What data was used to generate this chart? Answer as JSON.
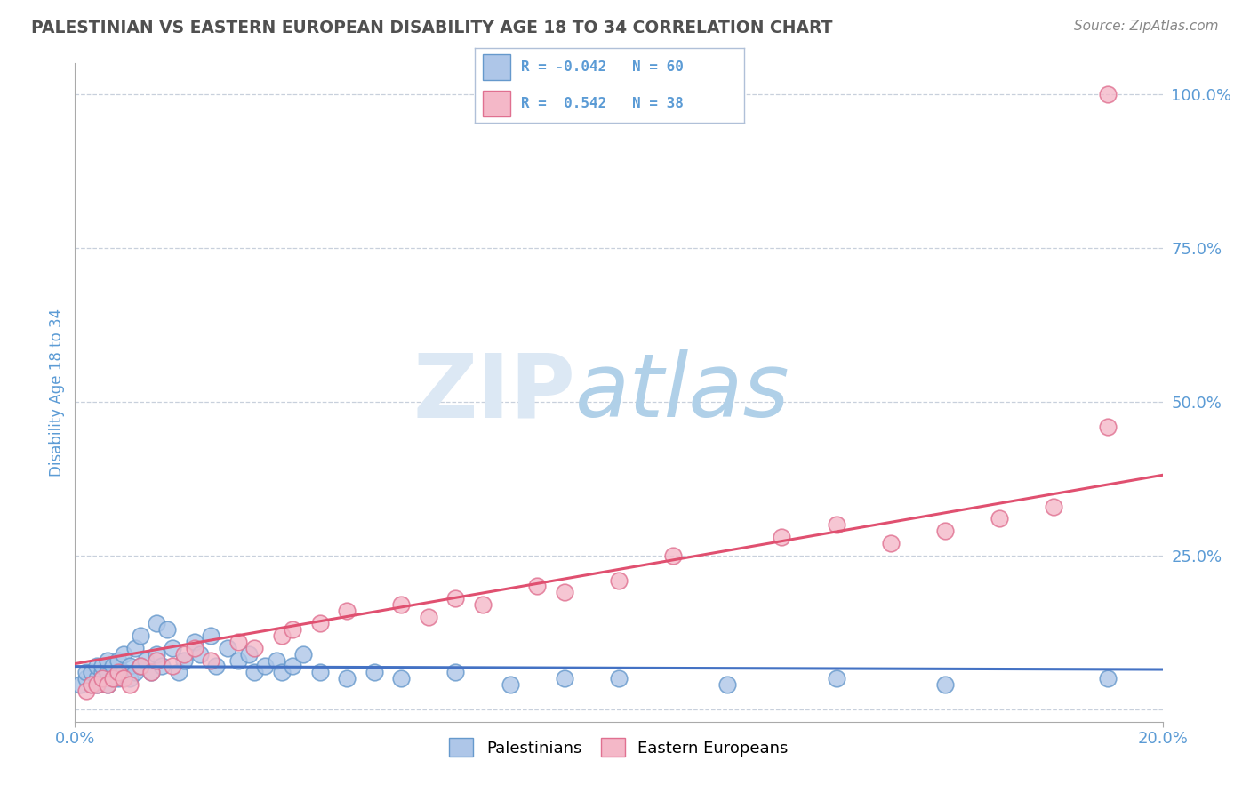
{
  "title": "PALESTINIAN VS EASTERN EUROPEAN DISABILITY AGE 18 TO 34 CORRELATION CHART",
  "source": "Source: ZipAtlas.com",
  "ylabel_label": "Disability Age 18 to 34",
  "xlim": [
    0.0,
    0.2
  ],
  "ylim": [
    -0.02,
    1.05
  ],
  "blue_color": "#aec6e8",
  "pink_color": "#f4b8c8",
  "blue_edge_color": "#6699cc",
  "pink_edge_color": "#e07090",
  "blue_line_color": "#4472c4",
  "pink_line_color": "#e05070",
  "background_color": "#ffffff",
  "grid_color": "#c8d0dc",
  "title_color": "#505050",
  "axis_tick_color": "#5b9bd5",
  "watermark_color": "#dce8f4",
  "legend_border_color": "#b0c0d8",
  "legend_r1": "R = -0.042",
  "legend_n1": "N = 60",
  "legend_r2": "R =  0.542",
  "legend_n2": "N = 38",
  "ytick_vals": [
    0.0,
    0.25,
    0.5,
    0.75,
    1.0
  ],
  "ytick_labels": [
    "",
    "25.0%",
    "50.0%",
    "75.0%",
    "100.0%"
  ],
  "xtick_vals": [
    0.0,
    0.2
  ],
  "xtick_labels": [
    "0.0%",
    "20.0%"
  ],
  "pal_x": [
    0.001,
    0.002,
    0.002,
    0.003,
    0.003,
    0.004,
    0.004,
    0.004,
    0.005,
    0.005,
    0.005,
    0.006,
    0.006,
    0.006,
    0.007,
    0.007,
    0.008,
    0.008,
    0.009,
    0.009,
    0.01,
    0.01,
    0.011,
    0.011,
    0.012,
    0.012,
    0.013,
    0.014,
    0.015,
    0.015,
    0.016,
    0.017,
    0.018,
    0.019,
    0.02,
    0.022,
    0.023,
    0.025,
    0.026,
    0.028,
    0.03,
    0.032,
    0.033,
    0.035,
    0.037,
    0.038,
    0.04,
    0.042,
    0.045,
    0.05,
    0.055,
    0.06,
    0.07,
    0.08,
    0.09,
    0.1,
    0.12,
    0.14,
    0.16,
    0.19
  ],
  "pal_y": [
    0.04,
    0.05,
    0.06,
    0.04,
    0.06,
    0.05,
    0.07,
    0.04,
    0.05,
    0.06,
    0.07,
    0.04,
    0.06,
    0.08,
    0.05,
    0.07,
    0.05,
    0.08,
    0.06,
    0.09,
    0.05,
    0.07,
    0.06,
    0.1,
    0.07,
    0.12,
    0.08,
    0.06,
    0.09,
    0.14,
    0.07,
    0.13,
    0.1,
    0.06,
    0.08,
    0.11,
    0.09,
    0.12,
    0.07,
    0.1,
    0.08,
    0.09,
    0.06,
    0.07,
    0.08,
    0.06,
    0.07,
    0.09,
    0.06,
    0.05,
    0.06,
    0.05,
    0.06,
    0.04,
    0.05,
    0.05,
    0.04,
    0.05,
    0.04,
    0.05
  ],
  "ee_x": [
    0.002,
    0.003,
    0.004,
    0.005,
    0.006,
    0.007,
    0.008,
    0.009,
    0.01,
    0.012,
    0.014,
    0.015,
    0.018,
    0.02,
    0.022,
    0.025,
    0.03,
    0.033,
    0.038,
    0.04,
    0.045,
    0.05,
    0.06,
    0.065,
    0.07,
    0.075,
    0.085,
    0.09,
    0.1,
    0.11,
    0.13,
    0.14,
    0.15,
    0.16,
    0.17,
    0.18,
    0.19,
    0.19
  ],
  "ee_y": [
    0.03,
    0.04,
    0.04,
    0.05,
    0.04,
    0.05,
    0.06,
    0.05,
    0.04,
    0.07,
    0.06,
    0.08,
    0.07,
    0.09,
    0.1,
    0.08,
    0.11,
    0.1,
    0.12,
    0.13,
    0.14,
    0.16,
    0.17,
    0.15,
    0.18,
    0.17,
    0.2,
    0.19,
    0.21,
    0.25,
    0.28,
    0.3,
    0.27,
    0.29,
    0.31,
    0.33,
    0.46,
    1.0
  ]
}
